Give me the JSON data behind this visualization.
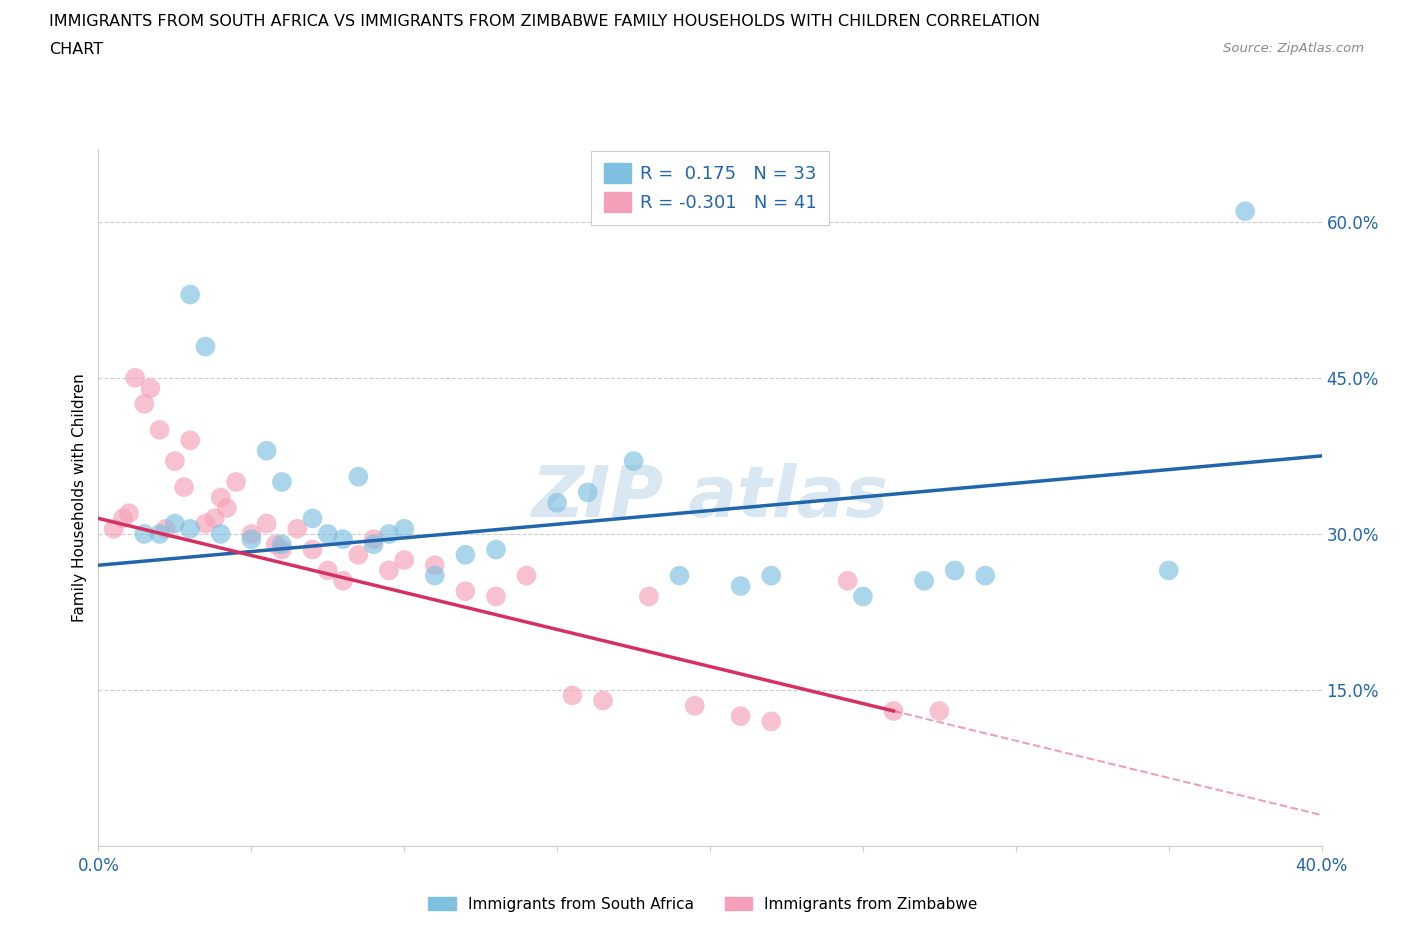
{
  "title_line1": "IMMIGRANTS FROM SOUTH AFRICA VS IMMIGRANTS FROM ZIMBABWE FAMILY HOUSEHOLDS WITH CHILDREN CORRELATION",
  "title_line2": "CHART",
  "source": "Source: ZipAtlas.com",
  "ylabel": "Family Households with Children",
  "xlim": [
    0.0,
    40.0
  ],
  "ylim": [
    0.0,
    67.0
  ],
  "yticks": [
    0.0,
    15.0,
    30.0,
    45.0,
    60.0
  ],
  "ytick_labels": [
    "",
    "15.0%",
    "30.0%",
    "45.0%",
    "60.0%"
  ],
  "xticks": [
    0.0,
    5.0,
    10.0,
    15.0,
    20.0,
    25.0,
    30.0,
    35.0,
    40.0
  ],
  "xtick_labels": [
    "0.0%",
    "",
    "",
    "",
    "",
    "",
    "",
    "",
    "40.0%"
  ],
  "blue_R": 0.175,
  "blue_N": 33,
  "pink_R": -0.301,
  "pink_N": 41,
  "blue_color": "#7fbfdf",
  "pink_color": "#f4a0b8",
  "blue_line_color": "#2166ac",
  "pink_line_color": "#d63060",
  "watermark_color": "#b8d4e8",
  "legend_label_blue": "Immigrants from South Africa",
  "legend_label_pink": "Immigrants from Zimbabwe",
  "blue_scatter_x": [
    3.0,
    3.5,
    5.5,
    6.0,
    1.5,
    2.0,
    2.5,
    3.0,
    4.0,
    5.0,
    6.0,
    7.0,
    7.5,
    8.0,
    8.5,
    9.0,
    9.5,
    10.0,
    11.0,
    12.0,
    13.0,
    15.0,
    16.0,
    17.5,
    19.0,
    21.0,
    22.0,
    25.0,
    27.0,
    28.0,
    29.0,
    35.0,
    37.5
  ],
  "blue_scatter_y": [
    53.0,
    48.0,
    38.0,
    35.0,
    30.0,
    30.0,
    31.0,
    30.5,
    30.0,
    29.5,
    29.0,
    31.5,
    30.0,
    29.5,
    35.5,
    29.0,
    30.0,
    30.5,
    26.0,
    28.0,
    28.5,
    33.0,
    34.0,
    37.0,
    26.0,
    25.0,
    26.0,
    24.0,
    25.5,
    26.5,
    26.0,
    26.5,
    61.0
  ],
  "pink_scatter_x": [
    0.5,
    0.8,
    1.0,
    1.2,
    1.5,
    1.7,
    2.0,
    2.2,
    2.5,
    2.8,
    3.0,
    3.5,
    3.8,
    4.0,
    4.2,
    4.5,
    5.0,
    5.5,
    5.8,
    6.0,
    6.5,
    7.0,
    7.5,
    8.0,
    8.5,
    9.0,
    9.5,
    10.0,
    11.0,
    12.0,
    13.0,
    14.0,
    15.5,
    16.5,
    18.0,
    19.5,
    21.0,
    22.0,
    24.5,
    26.0,
    27.5
  ],
  "pink_scatter_y": [
    30.5,
    31.5,
    32.0,
    45.0,
    42.5,
    44.0,
    40.0,
    30.5,
    37.0,
    34.5,
    39.0,
    31.0,
    31.5,
    33.5,
    32.5,
    35.0,
    30.0,
    31.0,
    29.0,
    28.5,
    30.5,
    28.5,
    26.5,
    25.5,
    28.0,
    29.5,
    26.5,
    27.5,
    27.0,
    24.5,
    24.0,
    26.0,
    14.5,
    14.0,
    24.0,
    13.5,
    12.5,
    12.0,
    25.5,
    13.0,
    13.0
  ],
  "blue_line_x0": 0.0,
  "blue_line_y0": 27.0,
  "blue_line_x1": 40.0,
  "blue_line_y1": 37.5,
  "pink_line_x0": 0.0,
  "pink_line_y0": 31.5,
  "pink_line_x1": 26.0,
  "pink_line_y1": 13.0,
  "pink_dash_x0": 26.0,
  "pink_dash_y0": 13.0,
  "pink_dash_x1": 40.0,
  "pink_dash_y1": 3.0
}
